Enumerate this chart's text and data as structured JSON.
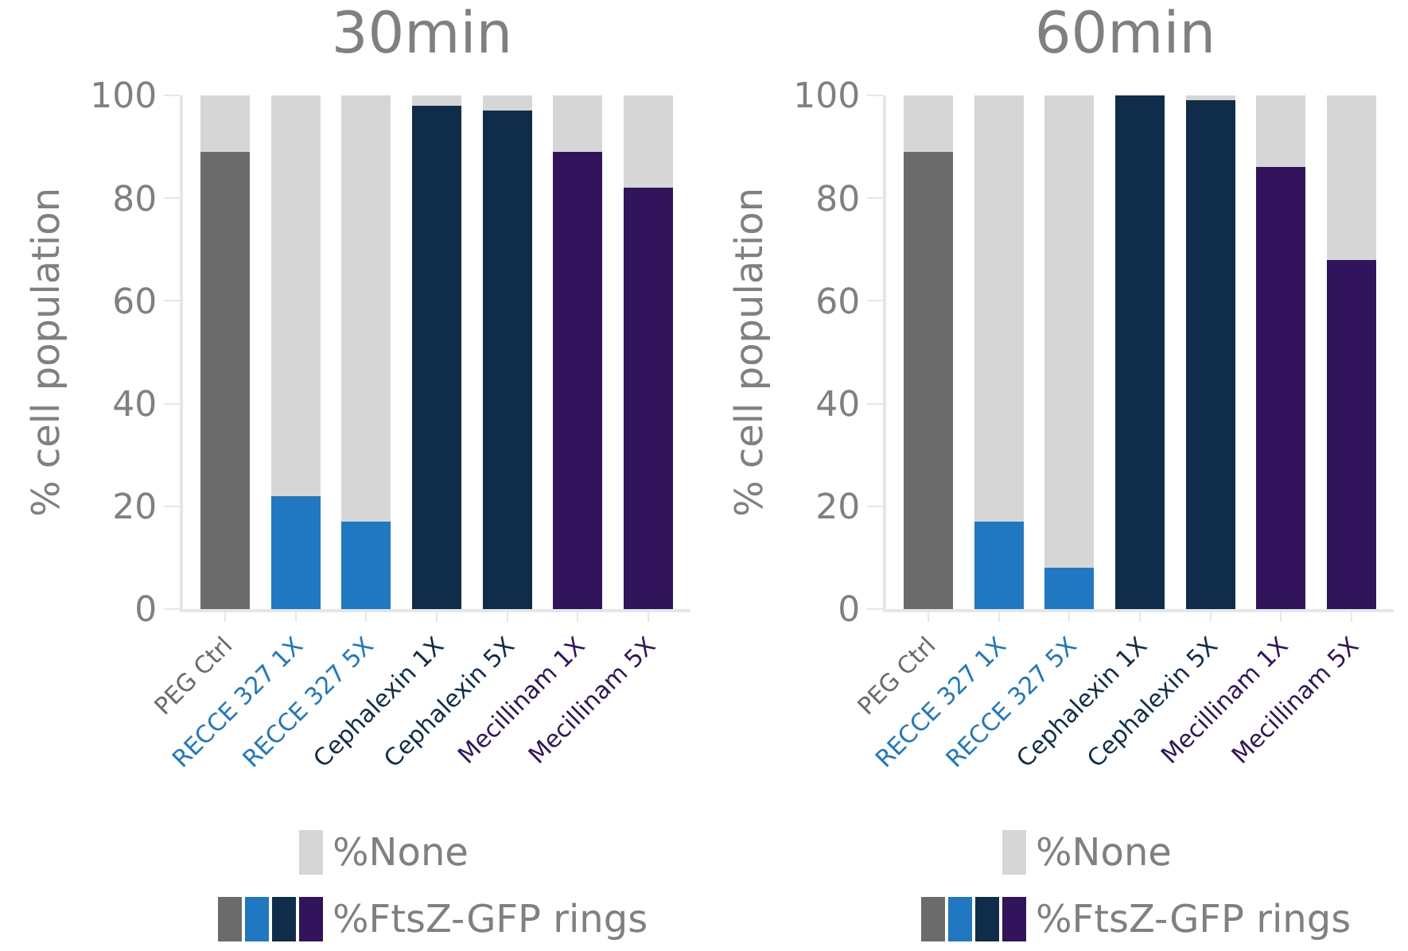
{
  "chart_data": [
    {
      "type": "bar",
      "title": "30min",
      "ylabel": "% cell population",
      "stacked": true,
      "legend": "bottom",
      "grid": false,
      "categories": [
        "PEG Ctrl",
        "RECCE 327 1X",
        "RECCE 327 5X",
        "Cephalexin 1X",
        "Cephalexin 5X",
        "Mecillinam 1X",
        "Mecillinam 5X"
      ],
      "ylim": [
        0,
        100
      ],
      "yticks": [
        0,
        20,
        40,
        60,
        80,
        100
      ],
      "series": [
        {
          "name": "%FtsZ-GFP rings",
          "colors": [
            "#6b6b6b",
            "#1f78c1",
            "#1f78c1",
            "#0f2d4a",
            "#0f2d4a",
            "#31145c",
            "#31145c"
          ],
          "values": [
            89,
            22,
            17,
            98,
            97,
            89,
            82
          ]
        },
        {
          "name": "%None",
          "color": "#d6d6d6",
          "values": [
            11,
            78,
            83,
            2,
            3,
            11,
            18
          ]
        }
      ]
    },
    {
      "type": "bar",
      "title": "60min",
      "ylabel": "% cell population",
      "stacked": true,
      "legend": "bottom",
      "grid": false,
      "categories": [
        "PEG Ctrl",
        "RECCE 327 1X",
        "RECCE 327 5X",
        "Cephalexin 1X",
        "Cephalexin 5X",
        "Mecillinam 1X",
        "Mecillinam 5X"
      ],
      "ylim": [
        0,
        100
      ],
      "yticks": [
        0,
        20,
        40,
        60,
        80,
        100
      ],
      "series": [
        {
          "name": "%FtsZ-GFP rings",
          "colors": [
            "#6b6b6b",
            "#1f78c1",
            "#1f78c1",
            "#0f2d4a",
            "#0f2d4a",
            "#31145c",
            "#31145c"
          ],
          "values": [
            89,
            17,
            8,
            100,
            99,
            86,
            68
          ]
        },
        {
          "name": "%None",
          "color": "#d6d6d6",
          "values": [
            11,
            83,
            92,
            0,
            1,
            14,
            32
          ]
        }
      ]
    }
  ]
}
